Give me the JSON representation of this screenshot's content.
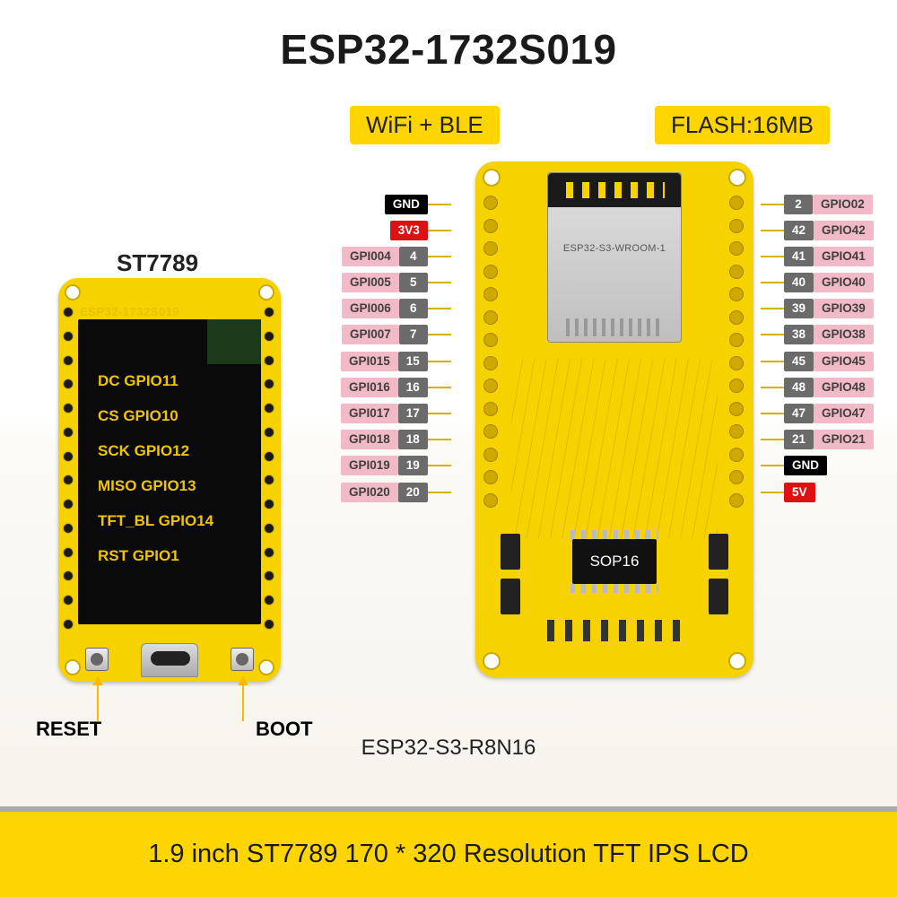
{
  "title": "ESP32-1732S019",
  "badges": {
    "wifi": "WiFi + BLE",
    "flash": "FLASH:16MB"
  },
  "driver_label": "ST7789",
  "reset_label": "RESET",
  "boot_label": "BOOT",
  "silkscreen": "ESP32-1732S019",
  "module_marking": "ESP32-S3-WROOM-1",
  "sop_label": "SOP16",
  "subtitle": "ESP32-S3-R8N16",
  "banner": "1.9 inch ST7789 170 * 320 Resolution TFT IPS LCD",
  "lcd_lines": [
    "DC GPIO11",
    "CS GPIO10",
    "SCK GPIO12",
    "MISO GPIO13",
    "TFT_BL GPIO14",
    "RST GPIO1"
  ],
  "colors": {
    "board": "#f5d200",
    "badge": "#ffd500",
    "pin_num_bg": "#6b6b6b",
    "pin_name_bg": "#f2b9c6",
    "gnd_bg": "#000000",
    "power_bg": "#dd1111",
    "lcd_text": "#f0c400",
    "trace": "#d4b200"
  },
  "pins_left": [
    {
      "special": "gnd",
      "label": "GND"
    },
    {
      "special": "3v3",
      "label": "3V3"
    },
    {
      "num": "4",
      "name": "GPI004"
    },
    {
      "num": "5",
      "name": "GPI005"
    },
    {
      "num": "6",
      "name": "GPI006"
    },
    {
      "num": "7",
      "name": "GPI007"
    },
    {
      "num": "15",
      "name": "GPI015"
    },
    {
      "num": "16",
      "name": "GPI016"
    },
    {
      "num": "17",
      "name": "GPI017"
    },
    {
      "num": "18",
      "name": "GPI018"
    },
    {
      "num": "19",
      "name": "GPI019"
    },
    {
      "num": "20",
      "name": "GPI020"
    }
  ],
  "pins_right": [
    {
      "num": "2",
      "name": "GPIO02"
    },
    {
      "num": "42",
      "name": "GPIO42"
    },
    {
      "num": "41",
      "name": "GPIO41"
    },
    {
      "num": "40",
      "name": "GPIO40"
    },
    {
      "num": "39",
      "name": "GPIO39"
    },
    {
      "num": "38",
      "name": "GPIO38"
    },
    {
      "num": "45",
      "name": "GPIO45"
    },
    {
      "num": "48",
      "name": "GPIO48"
    },
    {
      "num": "47",
      "name": "GPIO47"
    },
    {
      "num": "21",
      "name": "GPIO21"
    },
    {
      "special": "gnd",
      "label": "GND"
    },
    {
      "special": "5v",
      "label": "5V"
    }
  ],
  "header_pin_count": 14
}
